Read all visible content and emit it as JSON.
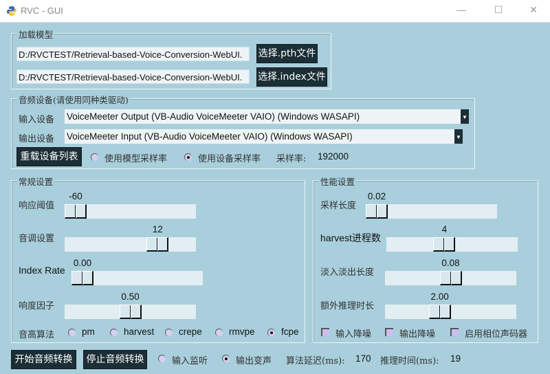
{
  "window": {
    "title": "RVC - GUI",
    "minimize": "—",
    "maximize": "☐",
    "close": "✕"
  },
  "load_model": {
    "legend": "加载模型",
    "pth_path": "D:/RVCTEST/Retrieval-based-Voice-Conversion-WebUI.",
    "index_path": "D:/RVCTEST/Retrieval-based-Voice-Conversion-WebUI.",
    "pth_button": "选择.pth文件",
    "index_button": "选择.index文件"
  },
  "audio_device": {
    "legend": "音频设备(请使用同种类驱动)",
    "input_label": "输入设备",
    "input_value": "VoiceMeeter Output (VB-Audio VoiceMeeter VAIO) (Windows WASAPI)",
    "output_label": "输出设备",
    "output_value": "VoiceMeeter Input (VB-Audio VoiceMeeter VAIO) (Windows WASAPI)",
    "reload_button": "重载设备列表",
    "sr_model": "使用模型采样率",
    "sr_device": "使用设备采样率",
    "sr_selected": "sr_device",
    "sr_label": "采样率:",
    "sr_value": "192000"
  },
  "general": {
    "legend": "常规设置",
    "sliders": [
      {
        "label": "响应阈值",
        "value": "-60",
        "fraction": 0.0
      },
      {
        "label": "音调设置",
        "value": "12",
        "fraction": 0.75
      },
      {
        "label": "Index Rate",
        "value": "0.00",
        "fraction": 0.0
      },
      {
        "label": "响度因子",
        "value": "0.50",
        "fraction": 0.5
      }
    ],
    "f0_label": "音高算法",
    "f0_options": [
      "pm",
      "harvest",
      "crepe",
      "rmvpe",
      "fcpe"
    ],
    "f0_selected": "fcpe"
  },
  "performance": {
    "legend": "性能设置",
    "sliders": [
      {
        "label": "采样长度",
        "value": "0.02",
        "fraction": 0.0
      },
      {
        "label": "harvest进程数",
        "value": "4",
        "fraction": 0.43
      },
      {
        "label": "淡入淡出长度",
        "value": "0.08",
        "fraction": 0.5
      },
      {
        "label": "额外推理时长",
        "value": "2.00",
        "fraction": 0.4
      }
    ],
    "checks": [
      {
        "label": "输入降噪",
        "checked": false
      },
      {
        "label": "输出降噪",
        "checked": false
      },
      {
        "label": "启用相位声码器",
        "checked": false
      }
    ]
  },
  "bottom": {
    "start_button": "开始音频转换",
    "stop_button": "停止音频转换",
    "monitor_input": "输入监听",
    "monitor_output": "输出变声",
    "monitor_selected": "output",
    "delay_label": "算法延迟(ms):",
    "delay_value": "170",
    "infer_label": "推理时间(ms):",
    "infer_value": "19"
  },
  "colors": {
    "background": "#a9cfdc",
    "button": "#1c2e36",
    "trough": "#e3eef2"
  }
}
